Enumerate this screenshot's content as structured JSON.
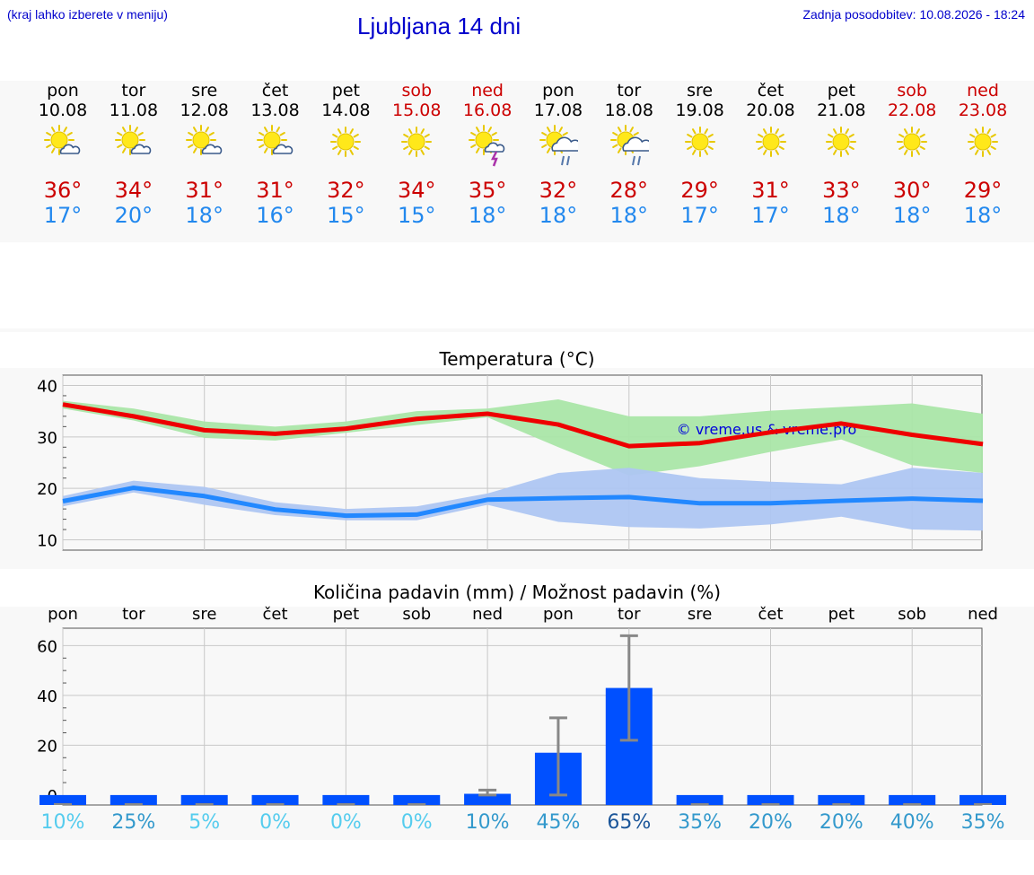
{
  "header": {
    "hint": "(kraj lahko izberete v meniju)",
    "title": "Ljubljana 14 dni",
    "updated": "Zadnja posodobitev: 10.08.2026 - 18:24"
  },
  "colors": {
    "max_line": "#ee0000",
    "min_line": "#2288ff",
    "max_band": "#aae6a8",
    "min_band": "#aec6f2",
    "precip_bar": "#0050ff",
    "error_bar": "#888888",
    "weekend": "#cc0000"
  },
  "forecast": [
    {
      "day": "pon",
      "date": "10.08",
      "max": "36°",
      "min": "17°",
      "weekend": false,
      "icon": "sun-cloud-icon"
    },
    {
      "day": "tor",
      "date": "11.08",
      "max": "34°",
      "min": "20°",
      "weekend": false,
      "icon": "sun-cloud-icon"
    },
    {
      "day": "sre",
      "date": "12.08",
      "max": "31°",
      "min": "18°",
      "weekend": false,
      "icon": "sun-cloud-icon"
    },
    {
      "day": "čet",
      "date": "13.08",
      "max": "31°",
      "min": "16°",
      "weekend": false,
      "icon": "sun-cloud-icon"
    },
    {
      "day": "pet",
      "date": "14.08",
      "max": "32°",
      "min": "15°",
      "weekend": false,
      "icon": "sun-icon"
    },
    {
      "day": "sob",
      "date": "15.08",
      "max": "34°",
      "min": "15°",
      "weekend": true,
      "icon": "sun-icon"
    },
    {
      "day": "ned",
      "date": "16.08",
      "max": "35°",
      "min": "18°",
      "weekend": true,
      "icon": "sun-storm-icon"
    },
    {
      "day": "pon",
      "date": "17.08",
      "max": "32°",
      "min": "18°",
      "weekend": false,
      "icon": "sun-rain-icon"
    },
    {
      "day": "tor",
      "date": "18.08",
      "max": "28°",
      "min": "18°",
      "weekend": false,
      "icon": "sun-rain-icon"
    },
    {
      "day": "sre",
      "date": "19.08",
      "max": "29°",
      "min": "17°",
      "weekend": false,
      "icon": "sun-icon"
    },
    {
      "day": "čet",
      "date": "20.08",
      "max": "31°",
      "min": "17°",
      "weekend": false,
      "icon": "sun-icon"
    },
    {
      "day": "pet",
      "date": "21.08",
      "max": "33°",
      "min": "18°",
      "weekend": false,
      "icon": "sun-icon"
    },
    {
      "day": "sob",
      "date": "22.08",
      "max": "30°",
      "min": "18°",
      "weekend": true,
      "icon": "sun-icon"
    },
    {
      "day": "ned",
      "date": "23.08",
      "max": "29°",
      "min": "18°",
      "weekend": true,
      "icon": "sun-icon"
    }
  ],
  "chart_data": [
    {
      "type": "line",
      "title": "Temperatura (°C)",
      "watermark": "© vreme.us & vreme.pro",
      "ylim": [
        8,
        42
      ],
      "yticks": [
        10,
        20,
        30,
        40
      ],
      "grid": true,
      "x": [
        0,
        1,
        2,
        3,
        4,
        5,
        6,
        7,
        8,
        9,
        10,
        11,
        12,
        13
      ],
      "series": [
        {
          "role": "max",
          "values": [
            36.3,
            34.0,
            31.3,
            30.6,
            31.6,
            33.5,
            34.5,
            32.4,
            28.2,
            28.8,
            30.9,
            32.6,
            30.4,
            28.6
          ],
          "band_low": [
            35.5,
            33.2,
            29.8,
            29.3,
            30.8,
            32.3,
            33.8,
            28.0,
            22.5,
            24.3,
            27.1,
            29.5,
            24.5,
            23.0
          ],
          "band_high": [
            37.0,
            35.5,
            33.0,
            32.0,
            33.0,
            35.0,
            35.5,
            37.3,
            34.0,
            34.0,
            35.1,
            35.8,
            36.5,
            34.5
          ]
        },
        {
          "role": "min",
          "values": [
            17.5,
            20.1,
            18.5,
            15.9,
            14.7,
            14.9,
            17.8,
            18.1,
            18.3,
            17.1,
            17.1,
            17.6,
            18.0,
            17.6
          ],
          "band_low": [
            16.5,
            19.2,
            16.8,
            14.8,
            13.8,
            13.8,
            16.8,
            13.5,
            12.5,
            12.2,
            13.0,
            14.5,
            12.0,
            11.8
          ],
          "band_high": [
            18.5,
            21.5,
            20.3,
            17.3,
            16.0,
            16.5,
            19.0,
            23.0,
            24.0,
            22.0,
            21.3,
            20.8,
            24.0,
            23.0
          ]
        }
      ]
    },
    {
      "type": "bar",
      "title": "Količina padavin (mm) / Možnost padavin (%)",
      "categories": [
        "pon",
        "tor",
        "sre",
        "čet",
        "pet",
        "sob",
        "ned",
        "pon",
        "tor",
        "sre",
        "čet",
        "pet",
        "sob",
        "ned"
      ],
      "ylim": [
        -4,
        67
      ],
      "yticks": [
        0,
        20,
        40,
        60
      ],
      "grid": true,
      "values": [
        0,
        0,
        0,
        0,
        0,
        0,
        0.5,
        17,
        43,
        0,
        0,
        0,
        0,
        0
      ],
      "err_low": [
        0,
        0,
        0,
        0,
        0,
        0,
        0,
        0,
        22,
        0,
        0,
        0,
        0,
        0
      ],
      "err_high": [
        0,
        0,
        0,
        0,
        0,
        0,
        2,
        31,
        64,
        0,
        0,
        0,
        0,
        0
      ],
      "probability": [
        {
          "label": "10%",
          "color": "#55ccee"
        },
        {
          "label": "25%",
          "color": "#3399cc"
        },
        {
          "label": "5%",
          "color": "#55ccee"
        },
        {
          "label": "0%",
          "color": "#55ccee"
        },
        {
          "label": "0%",
          "color": "#55ccee"
        },
        {
          "label": "0%",
          "color": "#55ccee"
        },
        {
          "label": "10%",
          "color": "#3399cc"
        },
        {
          "label": "45%",
          "color": "#3399cc"
        },
        {
          "label": "65%",
          "color": "#1a5599"
        },
        {
          "label": "35%",
          "color": "#3399cc"
        },
        {
          "label": "20%",
          "color": "#3399cc"
        },
        {
          "label": "20%",
          "color": "#3399cc"
        },
        {
          "label": "40%",
          "color": "#3399cc"
        },
        {
          "label": "35%",
          "color": "#3399cc"
        }
      ]
    }
  ]
}
